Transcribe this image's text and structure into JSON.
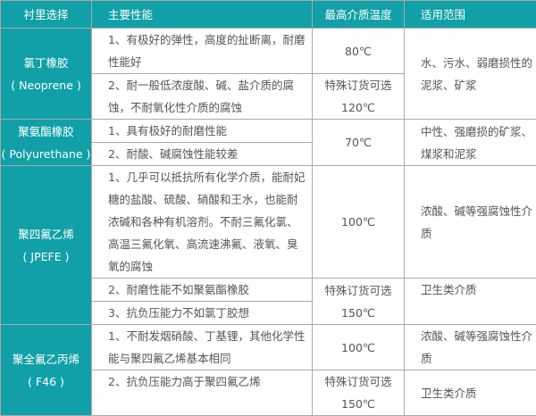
{
  "header": {
    "material": "衬里选择",
    "properties": "主要性能",
    "max_temp": "最高介质温度",
    "application": "适用范围"
  },
  "rows": [
    {
      "material": "氯丁橡胶",
      "material_en": "( Neoprene )",
      "props": [
        "1、有极好的弹性，高度的扯断离，耐磨性能好",
        "2、耐一般低浓度酸、碱、盐介质的腐蚀，不耐氧化性介质的腐蚀"
      ],
      "temp_standard": "80℃",
      "temp_special_label": "特殊订货可选",
      "temp_special": "120℃",
      "application": "水、污水、弱磨损性的泥浆、矿浆"
    },
    {
      "material": "聚氨酯橡胶",
      "material_en": "( Polyurethane )",
      "props": [
        "1、具有极好的耐磨性能",
        "2、耐酸、碱腐蚀性能较差"
      ],
      "temp_standard": "70℃",
      "application": "中性、强磨损的矿浆、煤浆和泥浆"
    },
    {
      "material": "聚四氟乙烯",
      "material_en": "( JPEFE )",
      "props": [
        "1、几乎可以抵抗所有化学介质，能耐妃糖的盐酸、硫酸、硝酸和王水，也能耐浓碱和各种有机溶剂。不耐三氟化氯、高温三氟化氧、高流速沸氟、液氧、臭氧的腐蚀",
        "2、耐磨性能不如聚氨酯橡胶",
        "3、抗负压能力不如氯丁胶想"
      ],
      "temp_standard": "100℃",
      "temp_special_label": "特殊订货可选",
      "temp_special": "150℃",
      "application": "浓酸、碱等强腐蚀性介质",
      "application_special": "卫生类介质"
    },
    {
      "material": "聚全氟乙丙烯",
      "material_en": "( F46 )",
      "props": [
        "1、不耐发烟硝酸、丁基锂，其他化学性能与聚四氟乙烯基本相同",
        "2、抗负压能力高于聚四氟乙烯"
      ],
      "temp_standard": "100℃",
      "temp_special_label": "特殊订货可选",
      "temp_special": "150℃",
      "application": "浓酸、碱等强腐蚀性介质",
      "application_special": "卫生类介质"
    }
  ],
  "colors": {
    "header_bg": "#11a0a7",
    "text": "#555555",
    "border": "#a9a9a9"
  }
}
